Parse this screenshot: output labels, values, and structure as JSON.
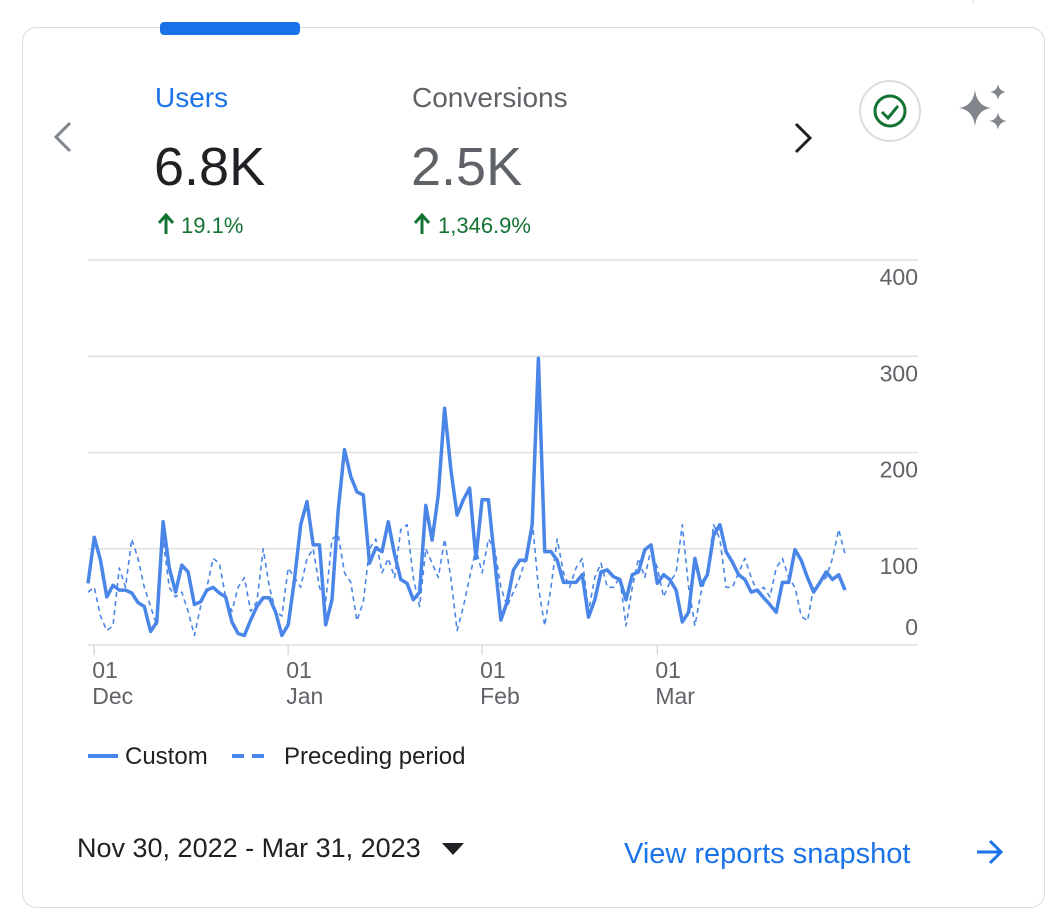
{
  "metrics": [
    {
      "label": "Users",
      "value": "6.8K",
      "change": "19.1%"
    },
    {
      "label": "Conversions",
      "value": "2.5K",
      "change": "1,346.9%"
    }
  ],
  "chart_data": {
    "type": "line",
    "categories": [
      null,
      "01\nDec",
      null,
      null,
      null,
      null,
      null,
      null,
      null,
      null,
      null,
      null,
      null,
      null,
      null,
      null,
      null,
      null,
      null,
      null,
      null,
      null,
      null,
      null,
      null,
      null,
      null,
      null,
      null,
      null,
      null,
      null,
      "01\nJan",
      null,
      null,
      null,
      null,
      null,
      null,
      null,
      null,
      null,
      null,
      null,
      null,
      null,
      null,
      null,
      null,
      null,
      null,
      null,
      null,
      null,
      null,
      null,
      null,
      null,
      null,
      null,
      null,
      null,
      null,
      "01\nFeb",
      null,
      null,
      null,
      null,
      null,
      null,
      null,
      null,
      null,
      null,
      null,
      null,
      null,
      null,
      null,
      null,
      null,
      null,
      null,
      null,
      null,
      null,
      null,
      null,
      null,
      null,
      null,
      "01\nMar",
      null,
      null,
      null,
      null,
      null,
      null,
      null,
      null,
      null,
      null,
      null,
      null,
      null,
      null,
      null,
      null,
      null,
      null,
      null,
      null,
      null,
      null,
      null,
      null,
      null,
      null,
      null,
      null,
      null,
      null
    ],
    "series": [
      {
        "name": "Custom",
        "color": "#4a86e8",
        "style": "solid",
        "values": [
          64,
          112,
          88,
          50,
          62,
          57,
          57,
          54,
          44,
          40,
          14,
          24,
          128,
          80,
          55,
          83,
          76,
          42,
          45,
          57,
          60,
          54,
          50,
          24,
          12,
          10,
          26,
          40,
          49,
          49,
          34,
          10,
          21,
          68,
          125,
          149,
          104,
          104,
          21,
          47,
          140,
          203,
          175,
          159,
          156,
          85,
          101,
          97,
          128,
          94,
          68,
          64,
          47,
          55,
          145,
          109,
          156,
          246,
          182,
          135,
          151,
          163,
          90,
          151,
          151,
          88,
          26,
          45,
          78,
          88,
          88,
          125,
          298,
          97,
          97,
          88,
          65,
          65,
          65,
          73,
          29,
          47,
          76,
          78,
          71,
          68,
          47,
          73,
          76,
          99,
          104,
          64,
          73,
          68,
          57,
          24,
          34,
          90,
          62,
          73,
          114,
          125,
          97,
          86,
          73,
          68,
          55,
          57,
          49,
          42,
          34,
          65,
          65,
          99,
          88,
          70,
          55,
          65,
          76,
          68,
          73,
          57
        ]
      },
      {
        "name": "Preceding period",
        "color": "#4a86e8",
        "style": "dashed",
        "values": [
          55,
          60,
          30,
          15,
          20,
          80,
          60,
          110,
          90,
          60,
          40,
          20,
          110,
          60,
          50,
          55,
          35,
          10,
          40,
          60,
          90,
          85,
          50,
          35,
          60,
          70,
          35,
          45,
          100,
          60,
          35,
          30,
          80,
          70,
          60,
          90,
          100,
          60,
          45,
          110,
          115,
          75,
          65,
          25,
          45,
          100,
          110,
          75,
          90,
          70,
          120,
          125,
          70,
          40,
          100,
          85,
          70,
          110,
          70,
          15,
          40,
          70,
          100,
          75,
          110,
          100,
          60,
          40,
          55,
          70,
          90,
          130,
          60,
          20,
          60,
          110,
          75,
          60,
          80,
          90,
          35,
          70,
          85,
          60,
          60,
          70,
          20,
          60,
          90,
          70,
          100,
          80,
          50,
          65,
          75,
          125,
          60,
          20,
          55,
          75,
          125,
          110,
          60,
          60,
          75,
          90,
          70,
          55,
          60,
          50,
          80,
          90,
          70,
          60,
          30,
          25,
          60,
          65,
          70,
          90,
          120,
          95
        ]
      }
    ],
    "ylim": [
      0,
      400
    ],
    "yticks": [
      0,
      100,
      200,
      300,
      400
    ],
    "grid": true
  },
  "date_range": "Nov 30, 2022 - Mar 31, 2023",
  "link": "View reports snapshot"
}
